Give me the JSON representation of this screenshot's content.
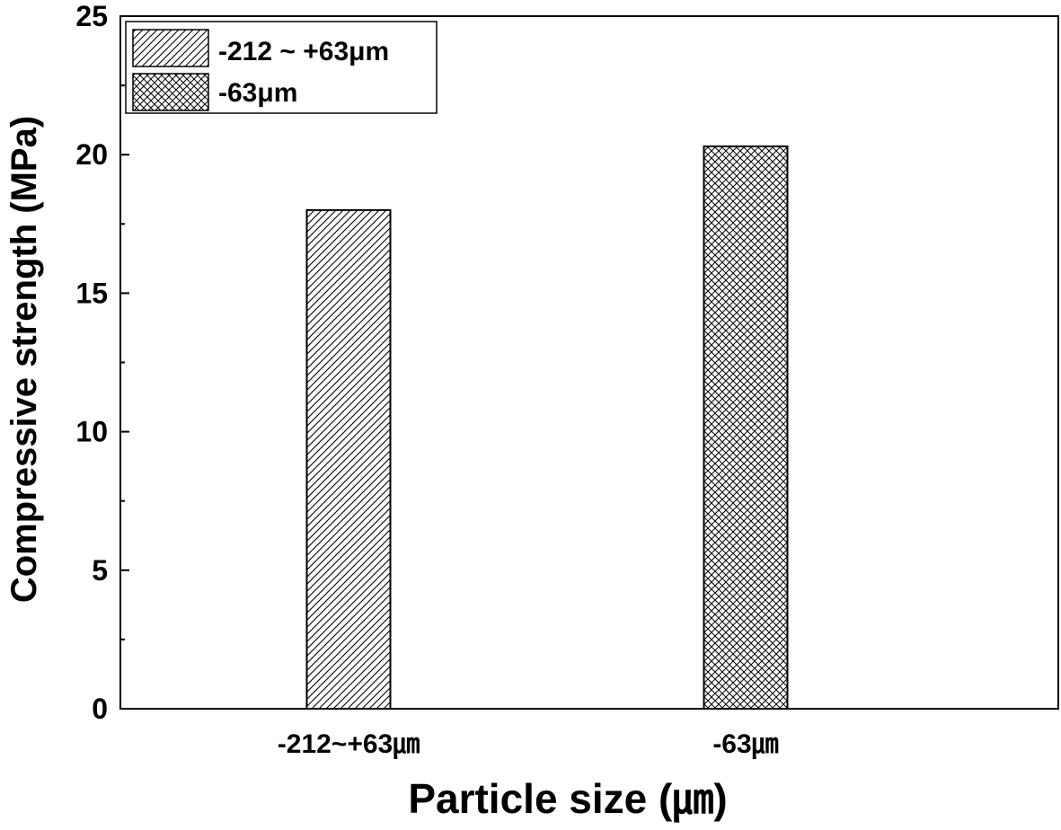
{
  "chart_data": {
    "type": "bar",
    "categories": [
      "-212~+63㎛",
      "-63㎛"
    ],
    "series": [
      {
        "name": "-212 ~ +63μm",
        "values": [
          18.0,
          null
        ],
        "pattern": "hatch"
      },
      {
        "name": "-63μm",
        "values": [
          null,
          20.3
        ],
        "pattern": "crosshatch"
      }
    ],
    "title": "",
    "xlabel": "Particle size (㎛)",
    "ylabel": "Compressive strength (MPa)",
    "ylim": [
      0,
      25
    ],
    "yticks": [
      0,
      5,
      10,
      15,
      20,
      25
    ],
    "ytick_labels": [
      "0",
      "5",
      "10",
      "15",
      "20",
      "25"
    ],
    "grid": false,
    "legend_position": "top-left",
    "colors": {
      "bar_stroke": "#000000",
      "pattern": "#000000",
      "background": "#ffffff"
    }
  }
}
